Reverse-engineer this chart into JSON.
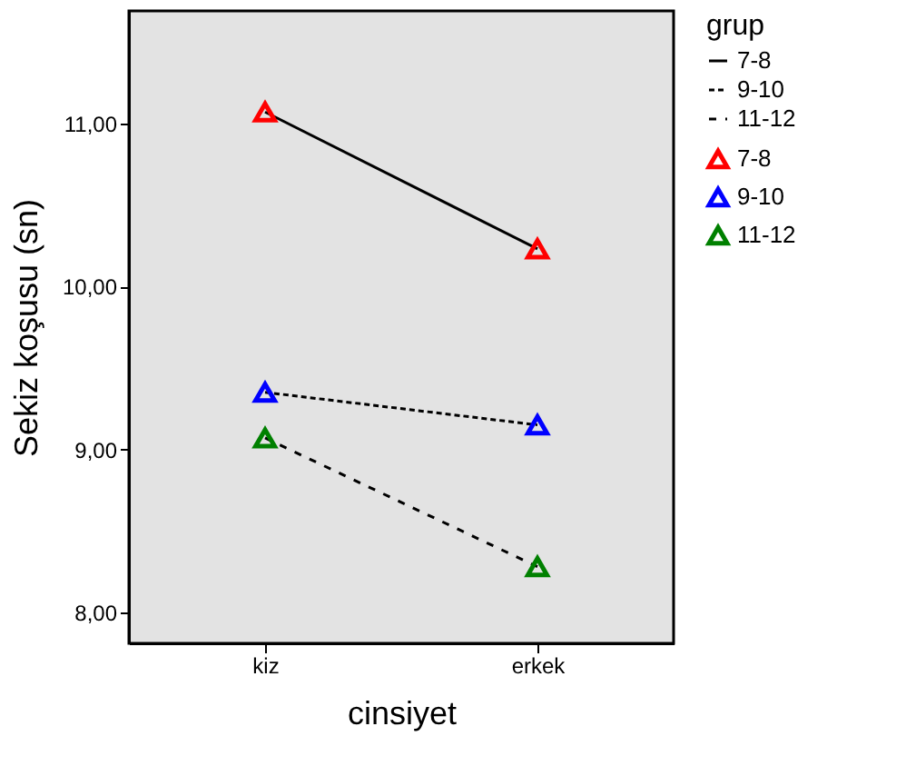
{
  "chart_data": {
    "type": "line",
    "xlabel": "cinsiyet",
    "ylabel": "Sekiz koşusu (sn)",
    "legend_title": "grup",
    "legend": "right",
    "categories": [
      "kiz",
      "erkek"
    ],
    "ylim": [
      7.81,
      11.69
    ],
    "yticks": [
      {
        "value": 8,
        "label": "8,00"
      },
      {
        "value": 9,
        "label": "9,00"
      },
      {
        "value": 10,
        "label": "10,00"
      },
      {
        "value": 11,
        "label": "11,00"
      }
    ],
    "series": [
      {
        "name": "7-8",
        "color": "#000000",
        "line_style": "solid",
        "marker": "none",
        "values": [
          11.07,
          10.23
        ]
      },
      {
        "name": "9-10",
        "color": "#000000",
        "line_style": "dotted",
        "marker": "none",
        "values": [
          9.35,
          9.15
        ]
      },
      {
        "name": "11-12",
        "color": "#000000",
        "line_style": "dashed",
        "marker": "none",
        "values": [
          9.07,
          8.28
        ]
      },
      {
        "name": "7-8",
        "type": "scatter",
        "color": "#ff0000",
        "marker": "triangle",
        "values": [
          11.07,
          10.23
        ]
      },
      {
        "name": "9-10",
        "type": "scatter",
        "color": "#0000ff",
        "marker": "triangle",
        "values": [
          9.35,
          9.15
        ]
      },
      {
        "name": "11-12",
        "type": "scatter",
        "color": "#008000",
        "marker": "triangle",
        "values": [
          9.07,
          8.28
        ]
      }
    ]
  }
}
